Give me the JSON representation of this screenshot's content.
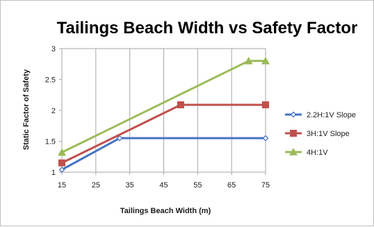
{
  "chart_data": {
    "type": "line",
    "title": "Tailings Beach Width vs Safety Factor",
    "xlabel": "Tailings Beach Width (m)",
    "ylabel": "Static Factor of Safety",
    "xlim": [
      15,
      75
    ],
    "ylim": [
      1,
      3
    ],
    "xticks": [
      "15",
      "25",
      "35",
      "45",
      "55",
      "65",
      "75"
    ],
    "yticks": [
      "1",
      "1.5",
      "2",
      "2.5",
      "3"
    ],
    "grid": "vertical",
    "legend_position": "right",
    "series": [
      {
        "name": "2.2H:1V Slope",
        "color": "#4472C4",
        "marker": "diamond-open",
        "points": [
          [
            15,
            1.04
          ],
          [
            32,
            1.55
          ],
          [
            75,
            1.55
          ]
        ]
      },
      {
        "name": "3H:1V Slope",
        "color": "#C0504D",
        "marker": "square",
        "points": [
          [
            15,
            1.15
          ],
          [
            50,
            2.09
          ],
          [
            75,
            2.09
          ]
        ]
      },
      {
        "name": "4H:1V",
        "color": "#9BBB59",
        "marker": "triangle",
        "points": [
          [
            15,
            1.32
          ],
          [
            70,
            2.8
          ],
          [
            75,
            2.8
          ]
        ]
      }
    ]
  }
}
